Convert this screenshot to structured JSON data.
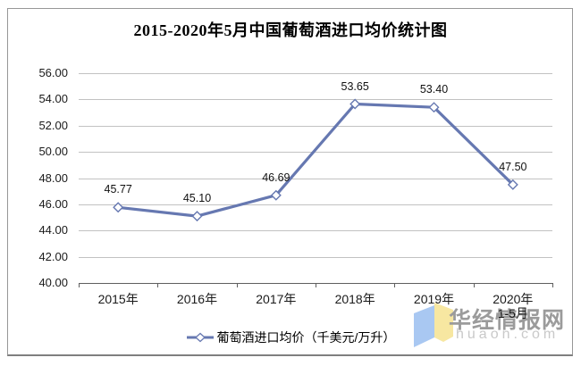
{
  "chart_data": {
    "type": "line",
    "title": "2015-2020年5月中国葡萄酒进口均价统计图",
    "categories": [
      "2015年",
      "2016年",
      "2017年",
      "2018年",
      "2019年",
      "2020年\n1-5月"
    ],
    "values": [
      45.77,
      45.1,
      46.69,
      53.65,
      53.4,
      47.5
    ],
    "data_labels": [
      "45.77",
      "45.10",
      "46.69",
      "53.65",
      "53.40",
      "47.50"
    ],
    "series_name": "葡萄酒进口均价（千美元/万升）",
    "xlabel": "",
    "ylabel": "",
    "ylim": [
      40,
      56
    ],
    "ytick_step": 2,
    "ytick_labels": [
      "40.00",
      "42.00",
      "44.00",
      "46.00",
      "48.00",
      "50.00",
      "52.00",
      "54.00",
      "56.00"
    ],
    "grid": "horizontal",
    "legend_position": "bottom",
    "line_color": "#6678b1",
    "marker": "open-diamond"
  },
  "legend": {
    "label": "葡萄酒进口均价（千美元/万升）"
  },
  "watermark": {
    "name": "华经情报网",
    "domain": "huaon.com",
    "logo_blue": "#a9c8f2",
    "logo_yellow": "#f7e7a1"
  }
}
